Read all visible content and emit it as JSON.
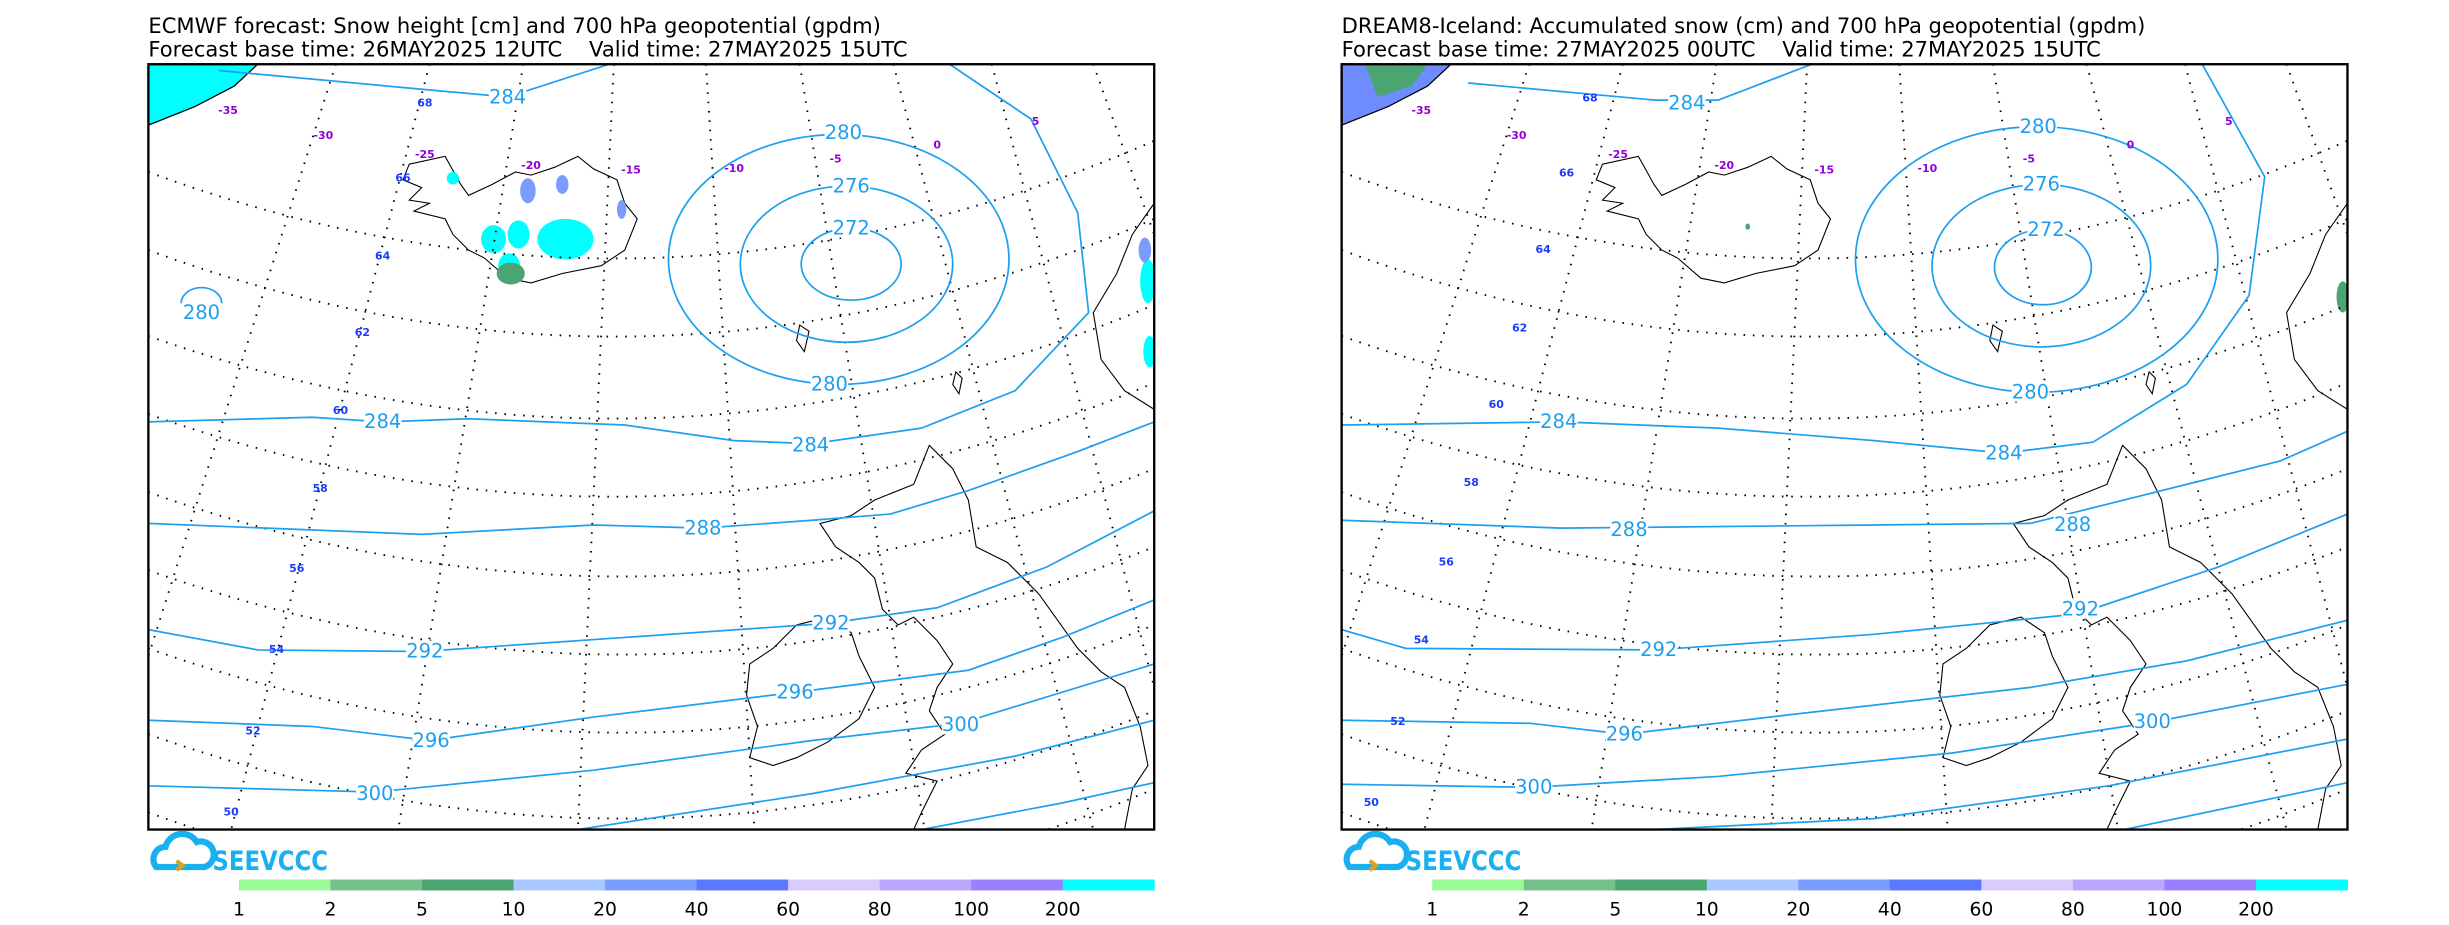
{
  "panels": [
    {
      "id": "ecmwf",
      "title_line1": "ECMWF forecast: Snow height [cm] and 700 hPa geopotential (gpdm)",
      "title_line2": "Forecast base time: 26MAY2025 12UTC    Valid time: 27MAY2025 15UTC",
      "contour_labels": [
        "284",
        "280",
        "276",
        "272",
        "280",
        "280",
        "284",
        "284",
        "288",
        "292",
        "292",
        "296",
        "296",
        "300",
        "300"
      ],
      "lon_labels": [
        "-35",
        "-30",
        "-25",
        "-20",
        "-15",
        "-10",
        "-5",
        "0",
        "5"
      ],
      "lat_labels": [
        "68",
        "66",
        "64",
        "62",
        "60",
        "58",
        "56",
        "54",
        "52",
        "50"
      ]
    },
    {
      "id": "dream8",
      "title_line1": "DREAM8-Iceland: Accumulated snow (cm) and 700 hPa geopotential (gpdm)",
      "title_line2": "Forecast base time: 27MAY2025 00UTC    Valid time: 27MAY2025 15UTC",
      "contour_labels": [
        "284",
        "280",
        "276",
        "272",
        "280",
        "284",
        "284",
        "288",
        "288",
        "292",
        "292",
        "296",
        "300",
        "300"
      ],
      "lon_labels": [
        "-35",
        "-30",
        "-25",
        "-20",
        "-15",
        "-10",
        "-5",
        "0",
        "5"
      ],
      "lat_labels": [
        "68",
        "66",
        "64",
        "62",
        "60",
        "58",
        "56",
        "54",
        "52",
        "50"
      ]
    }
  ],
  "logo": {
    "text": "SEEVCCC"
  },
  "colorbar": {
    "labels": [
      "1",
      "2",
      "5",
      "10",
      "20",
      "40",
      "60",
      "80",
      "100",
      "200"
    ],
    "colors": [
      "#98fb98",
      "#78bf8e",
      "#4aa572",
      "#a8c8ff",
      "#7a9cff",
      "#5b78ff",
      "#d8ccff",
      "#b9a7ff",
      "#9a80ff",
      "#00ffff"
    ]
  },
  "colors": {
    "contour": "#1ea0f0",
    "snow_max": "#00ffff",
    "lon_label": "#9000d8",
    "lat_label": "#1a3cff"
  }
}
